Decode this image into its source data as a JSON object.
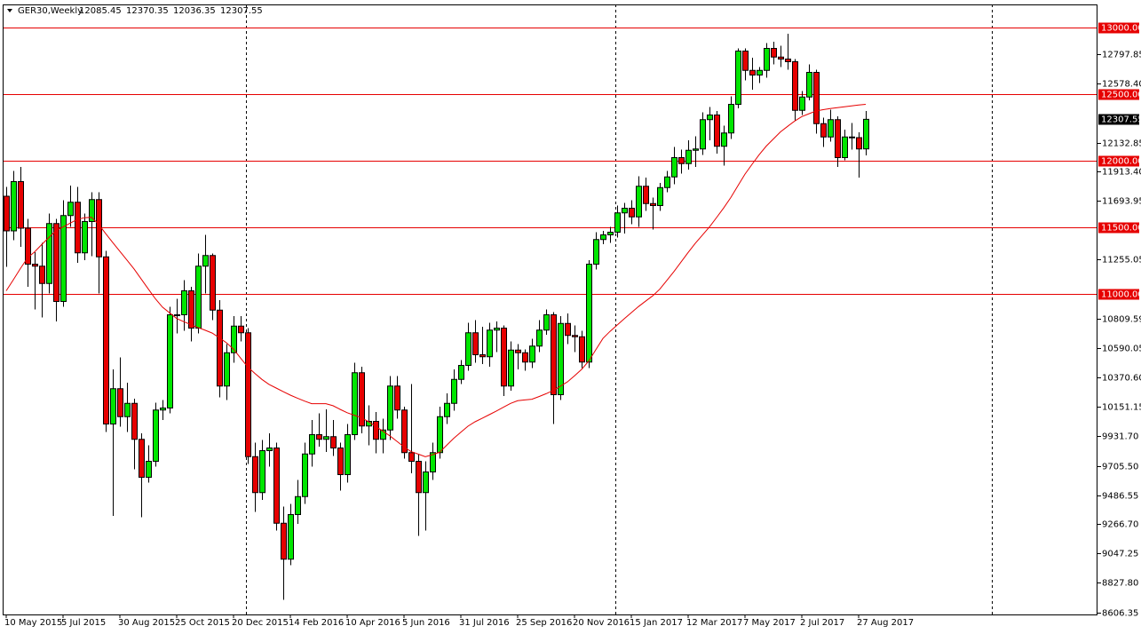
{
  "chart_data": {
    "type": "candlestick",
    "title": "GER30,Weekly",
    "categories": [
      "10 May 2015",
      null,
      null,
      null,
      null,
      null,
      null,
      null,
      "5 Jul 2015",
      null,
      null,
      null,
      null,
      null,
      null,
      null,
      "30 Aug 2015",
      null,
      null,
      null,
      null,
      null,
      null,
      null,
      "25 Oct 2015",
      null,
      null,
      null,
      null,
      null,
      null,
      null,
      "20 Dec 2015",
      null,
      null,
      null,
      null,
      null,
      null,
      null,
      "14 Feb 2016",
      null,
      null,
      null,
      null,
      null,
      null,
      null,
      "10 Apr 2016",
      null,
      null,
      null,
      null,
      null,
      null,
      null,
      "5 Jun 2016",
      null,
      null,
      null,
      null,
      null,
      null,
      null,
      "31 Jul 2016",
      null,
      null,
      null,
      null,
      null,
      null,
      null,
      "25 Sep 2016",
      null,
      null,
      null,
      null,
      null,
      null,
      null,
      "20 Nov 2016",
      null,
      null,
      null,
      null,
      null,
      null,
      null,
      "15 Jan 2017",
      null,
      null,
      null,
      null,
      null,
      null,
      null,
      "12 Mar 2017",
      null,
      null,
      null,
      null,
      null,
      null,
      null,
      "7 May 2017",
      null,
      null,
      null,
      null,
      null,
      null,
      null,
      "2 Jul 2017",
      null,
      null,
      null,
      null,
      null,
      null,
      null,
      "27 Aug 2017",
      null
    ],
    "open": [
      11730,
      11470,
      11840,
      11490,
      11220,
      11205,
      11075,
      11525,
      10940,
      11585,
      11685,
      11305,
      11540,
      11705,
      11275,
      10020,
      10285,
      10075,
      10175,
      9905,
      9620,
      9740,
      10125,
      10140,
      10840,
      10840,
      11020,
      10740,
      11205,
      11285,
      10875,
      10305,
      10555,
      10755,
      10705,
      9775,
      9505,
      9820,
      9840,
      9275,
      9005,
      9340,
      9475,
      9795,
      9940,
      9905,
      9925,
      9840,
      9640,
      9940,
      10405,
      10005,
      10040,
      9905,
      9975,
      10305,
      10125,
      9805,
      9740,
      9505,
      9660,
      9805,
      10075,
      10175,
      10355,
      10460,
      10705,
      10540,
      10525,
      10725,
      10740,
      10305,
      10575,
      10555,
      10485,
      10605,
      10725,
      10840,
      10240,
      10775,
      10685,
      10675,
      10485,
      11220,
      11405,
      11440,
      11460,
      11605,
      11640,
      11575,
      11805,
      11675,
      11660,
      11795,
      11875,
      12020,
      11975,
      12075,
      12085,
      12305,
      12340,
      12105,
      12205,
      12420,
      12820,
      12675,
      12640,
      12675,
      12840,
      12775,
      12760,
      12740,
      12375,
      12475,
      12660,
      12275,
      12175,
      12305,
      12020,
      12175,
      12170,
      12085.45
    ],
    "high": [
      11800,
      11920,
      11950,
      11560,
      11310,
      11380,
      11600,
      11560,
      11700,
      11810,
      11800,
      11600,
      11760,
      11760,
      11320,
      10430,
      10520,
      10330,
      10210,
      9950,
      9860,
      10180,
      10200,
      10900,
      10960,
      11100,
      11050,
      11300,
      11440,
      11300,
      10950,
      10620,
      10830,
      10830,
      10740,
      9880,
      9900,
      9950,
      9880,
      9400,
      9420,
      9600,
      9880,
      10050,
      10100,
      10130,
      10050,
      9880,
      10020,
      10480,
      10450,
      10160,
      10110,
      10060,
      10380,
      10380,
      10150,
      10320,
      9790,
      9740,
      9880,
      10150,
      10250,
      10430,
      10500,
      10780,
      10800,
      10750,
      10780,
      10790,
      10760,
      10640,
      10620,
      10580,
      10660,
      10800,
      10880,
      10860,
      10830,
      10850,
      10760,
      10720,
      11250,
      11460,
      11470,
      11500,
      11660,
      11680,
      11700,
      11880,
      11870,
      11720,
      11830,
      11920,
      12100,
      12080,
      12150,
      12180,
      12360,
      12400,
      12370,
      12260,
      12480,
      12840,
      12840,
      12770,
      12700,
      12880,
      12890,
      12860,
      12950,
      12760,
      12520,
      12720,
      12680,
      12320,
      12380,
      12330,
      12230,
      12280,
      12210,
      12370.35
    ],
    "low": [
      11200,
      11400,
      11350,
      11050,
      10880,
      10820,
      11000,
      10790,
      10900,
      11500,
      11230,
      11250,
      11280,
      11000,
      9960,
      9330,
      10000,
      9960,
      9680,
      9320,
      9580,
      9700,
      10050,
      10100,
      10700,
      10720,
      10640,
      10700,
      11000,
      10800,
      10220,
      10200,
      10480,
      10640,
      9720,
      9360,
      9450,
      9700,
      9220,
      8700,
      8960,
      9270,
      9420,
      9700,
      9850,
      9810,
      9780,
      9520,
      9580,
      9900,
      9950,
      9860,
      9800,
      9800,
      9900,
      10060,
      9760,
      9650,
      9180,
      9220,
      9600,
      9760,
      10020,
      10120,
      10320,
      10420,
      10480,
      10470,
      10450,
      10560,
      10230,
      10270,
      10430,
      10420,
      10440,
      10560,
      10690,
      10020,
      10200,
      10620,
      10560,
      10440,
      10440,
      11180,
      11370,
      11380,
      11420,
      11450,
      11520,
      11500,
      11620,
      11480,
      11620,
      11760,
      11820,
      11900,
      11930,
      11950,
      12040,
      12150,
      12050,
      11960,
      12160,
      12390,
      12600,
      12530,
      12580,
      12620,
      12720,
      12700,
      12680,
      12300,
      12340,
      12450,
      12200,
      12100,
      12140,
      11950,
      12000,
      12080,
      11870,
      12036.35
    ],
    "close": [
      11470,
      11840,
      11490,
      11220,
      11205,
      11075,
      11525,
      10940,
      11585,
      11685,
      11305,
      11540,
      11705,
      11275,
      10020,
      10285,
      10075,
      10175,
      9905,
      9620,
      9740,
      10125,
      10140,
      10840,
      10840,
      11020,
      10740,
      11205,
      11285,
      10875,
      10305,
      10555,
      10755,
      10705,
      9775,
      9505,
      9820,
      9840,
      9275,
      9005,
      9340,
      9475,
      9795,
      9940,
      9905,
      9925,
      9840,
      9640,
      9940,
      10405,
      10005,
      10040,
      9905,
      9975,
      10305,
      10125,
      9805,
      9740,
      9505,
      9660,
      9805,
      10075,
      10175,
      10355,
      10460,
      10705,
      10540,
      10525,
      10725,
      10740,
      10305,
      10575,
      10555,
      10485,
      10605,
      10725,
      10840,
      10240,
      10775,
      10685,
      10675,
      10485,
      11220,
      11405,
      11440,
      11460,
      11605,
      11640,
      11575,
      11805,
      11675,
      11660,
      11795,
      11875,
      12020,
      11975,
      12075,
      12085,
      12305,
      12340,
      12105,
      12205,
      12420,
      12820,
      12675,
      12640,
      12675,
      12840,
      12775,
      12760,
      12740,
      12375,
      12475,
      12660,
      12275,
      12175,
      12305,
      12020,
      12175,
      12170,
      12085,
      12307.55
    ],
    "ma_values": [
      11020,
      11103,
      11187,
      11267,
      11313,
      11367,
      11420,
      11471,
      11499,
      11528,
      11556,
      11569,
      11572,
      11520,
      11449,
      11382,
      11316,
      11251,
      11184,
      11109,
      11034,
      10960,
      10897,
      10855,
      10812,
      10788,
      10766,
      10745,
      10724,
      10703,
      10667,
      10630,
      10582,
      10515,
      10448,
      10400,
      10355,
      10317,
      10290,
      10263,
      10237,
      10214,
      10192,
      10173,
      10173,
      10173,
      10157,
      10130,
      10105,
      10086,
      10067,
      10038,
      10002,
      9967,
      9931,
      9890,
      9847,
      9813,
      9794,
      9775,
      9789,
      9807,
      9860,
      9913,
      9958,
      10003,
      10037,
      10063,
      10090,
      10117,
      10146,
      10175,
      10195,
      10201,
      10206,
      10226,
      10247,
      10272,
      10304,
      10336,
      10382,
      10430,
      10492,
      10577,
      10662,
      10715,
      10763,
      10810,
      10856,
      10901,
      10942,
      10982,
      11032,
      11098,
      11165,
      11236,
      11308,
      11376,
      11438,
      11499,
      11570,
      11642,
      11720,
      11808,
      11896,
      11970,
      12042,
      12107,
      12160,
      12213,
      12255,
      12295,
      12328,
      12349,
      12370,
      12380,
      12388,
      12395,
      12402,
      12408,
      12415,
      12420
    ],
    "up_color": "#00e600",
    "down_color": "#e60000",
    "ma_color": "#e60000",
    "level_color": "#e60000",
    "levels": [
      {
        "value": 13000,
        "label": "13000.00"
      },
      {
        "value": 12500,
        "label": "12500.00"
      },
      {
        "value": 12000,
        "label": "12000.00"
      },
      {
        "value": 11500,
        "label": "11500.00"
      },
      {
        "value": 11000,
        "label": "11000.00"
      }
    ],
    "ylim": [
      8590,
      13170
    ],
    "yticks": [
      12797.85,
      {
        "value": 12578.4,
        "label": "12578.40"
      },
      12132.85,
      {
        "value": 11913.4,
        "label": "11913.40"
      },
      11693.95,
      11255.05,
      10809.59,
      10590.05,
      {
        "value": 10370.6,
        "label": "10370.60"
      },
      10151.15,
      {
        "value": 9931.7,
        "label": "9931.70"
      },
      {
        "value": 9705.5,
        "label": "9705.50"
      },
      9486.55,
      {
        "value": 9266.7,
        "label": "9266.70"
      },
      9047.25,
      {
        "value": 8827.8,
        "label": "8827.80"
      },
      8606.35
    ]
  }
}
